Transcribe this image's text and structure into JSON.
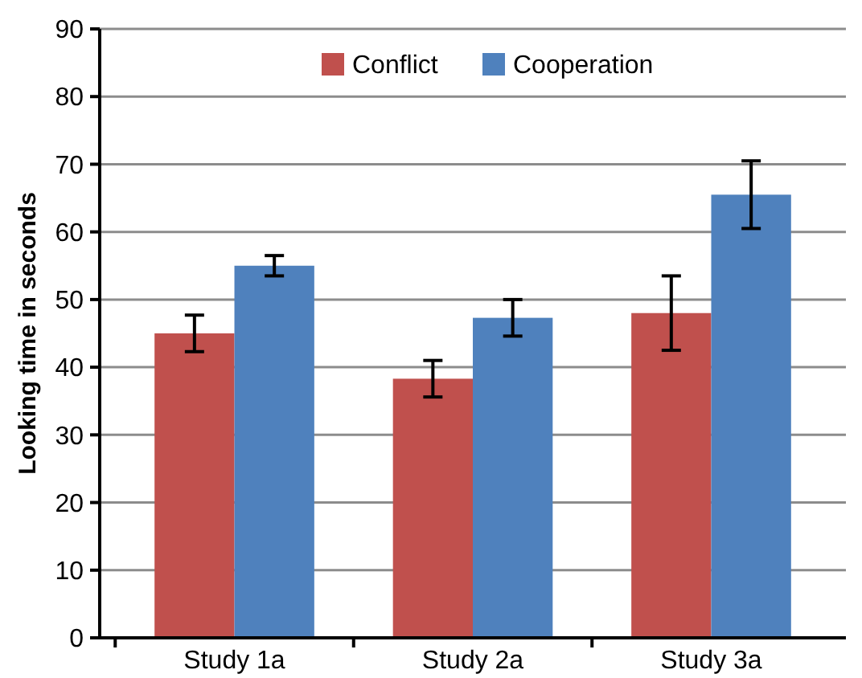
{
  "chart_data": {
    "type": "bar",
    "ylabel": "Looking time in seconds",
    "categories": [
      "Study 1a",
      "Study 2a",
      "Study 3a"
    ],
    "series": [
      {
        "name": "Conflict",
        "color": "#c0504d",
        "values": [
          45,
          38.3,
          48
        ],
        "errors": [
          2.7,
          2.7,
          5.5
        ]
      },
      {
        "name": "Cooperation",
        "color": "#4f81bd",
        "values": [
          55,
          47.3,
          65.5
        ],
        "errors": [
          1.5,
          2.7,
          5
        ]
      }
    ],
    "ylim": [
      0,
      90
    ],
    "yticks": [
      0,
      10,
      20,
      30,
      40,
      50,
      60,
      70,
      80,
      90
    ],
    "grid": "y",
    "legend": "top"
  }
}
